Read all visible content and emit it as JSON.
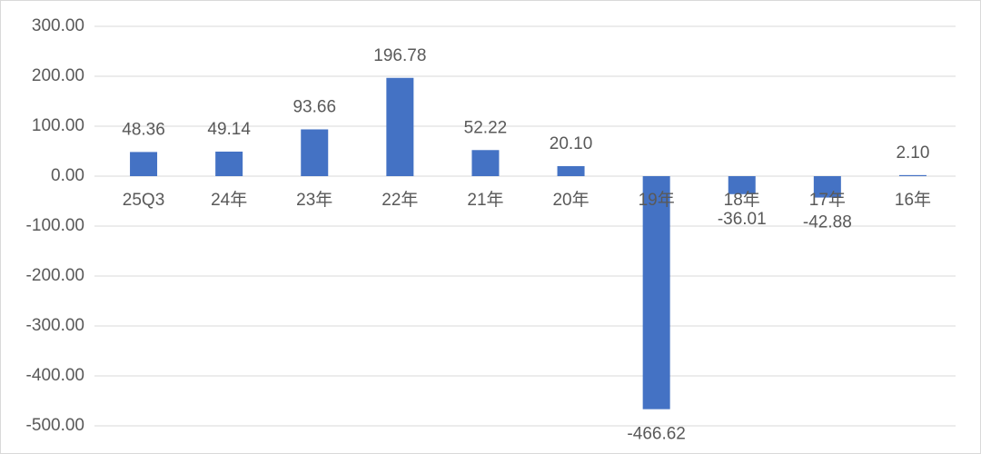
{
  "chart_data": {
    "type": "bar",
    "categories": [
      "25Q3",
      "24年",
      "23年",
      "22年",
      "21年",
      "20年",
      "19年",
      "18年",
      "17年",
      "16年"
    ],
    "values": [
      48.36,
      49.14,
      93.66,
      196.78,
      52.22,
      20.1,
      -466.62,
      -36.01,
      -42.88,
      2.1
    ],
    "value_labels": [
      "48.36",
      "49.14",
      "93.66",
      "196.78",
      "52.22",
      "20.10",
      "-466.62",
      "-36.01",
      "-42.88",
      "2.10"
    ],
    "color": "#4472c4",
    "ylim": [
      -500,
      300
    ],
    "yticks": [
      {
        "value": -500,
        "label": "-500.00"
      },
      {
        "value": -400,
        "label": "-400.00"
      },
      {
        "value": -300,
        "label": "-300.00"
      },
      {
        "value": -200,
        "label": "-200.00"
      },
      {
        "value": -100,
        "label": "-100.00"
      },
      {
        "value": 0,
        "label": "0.00"
      },
      {
        "value": 100,
        "label": "100.00"
      },
      {
        "value": 200,
        "label": "200.00"
      },
      {
        "value": 300,
        "label": "300.00"
      }
    ],
    "grid": true
  }
}
